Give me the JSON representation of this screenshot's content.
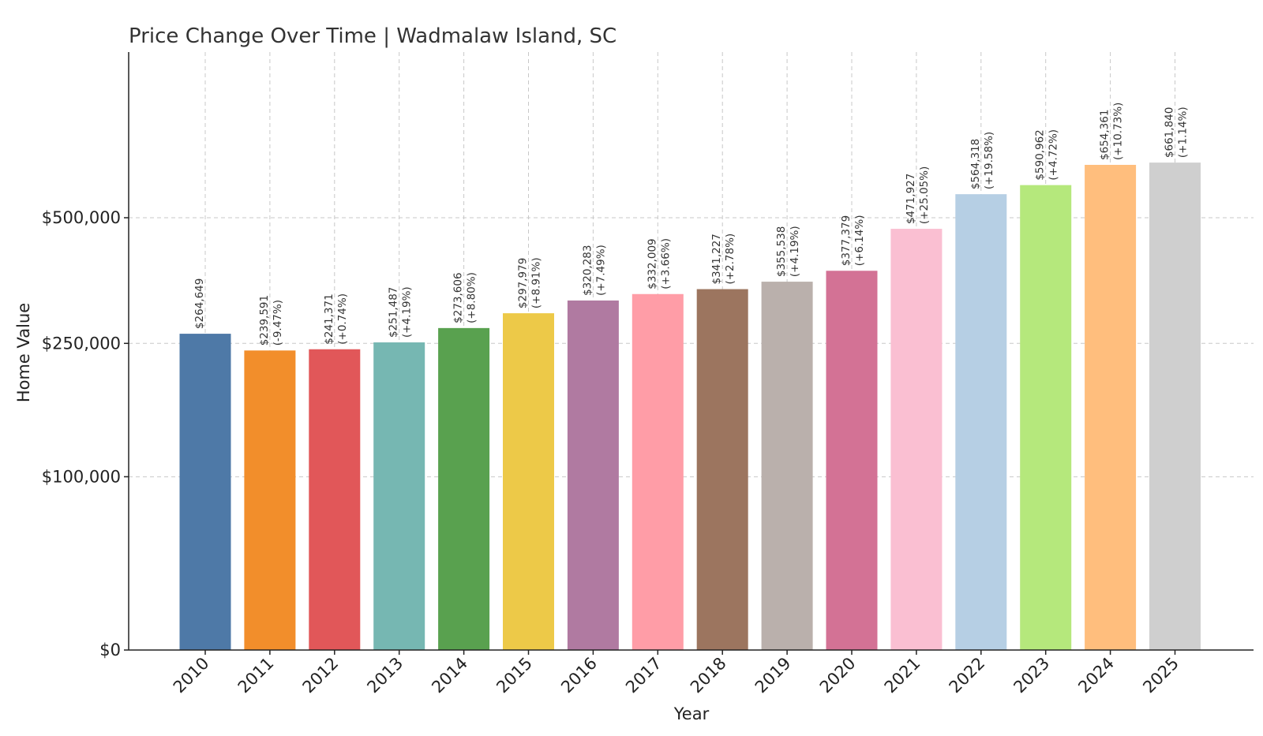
{
  "chart_data": {
    "type": "bar",
    "title": "Price Change Over Time | Wadmalaw Island, SC",
    "xlabel": "Year",
    "ylabel": "Home Value",
    "y_scale": "symlog",
    "ylim": [
      0,
      720000
    ],
    "yticks": [
      0,
      100000,
      250000,
      500000
    ],
    "ytick_labels": [
      "$0",
      "$100,000",
      "$250,000",
      "$500,000"
    ],
    "grid": true,
    "categories": [
      "2010",
      "2011",
      "2012",
      "2013",
      "2014",
      "2015",
      "2016",
      "2017",
      "2018",
      "2019",
      "2020",
      "2021",
      "2022",
      "2023",
      "2024",
      "2025"
    ],
    "values": [
      264649,
      239591,
      241371,
      251487,
      273606,
      297979,
      320283,
      332009,
      341227,
      355538,
      377379,
      471927,
      564318,
      590962,
      654361,
      661840
    ],
    "value_labels": [
      "$264,649",
      "$239,591",
      "$241,371",
      "$251,487",
      "$273,606",
      "$297,979",
      "$320,283",
      "$332,009",
      "$341,227",
      "$355,538",
      "$377,379",
      "$471,927",
      "$564,318",
      "$590,962",
      "$654,361",
      "$661,840"
    ],
    "change_labels": [
      "",
      "(-9.47%)",
      "(+0.74%)",
      "(+4.19%)",
      "(+8.80%)",
      "(+8.91%)",
      "(+7.49%)",
      "(+3.66%)",
      "(+2.78%)",
      "(+4.19%)",
      "(+6.14%)",
      "(+25.05%)",
      "(+19.58%)",
      "(+4.72%)",
      "(+10.73%)",
      "(+1.14%)"
    ],
    "colors": [
      "#4e79a7",
      "#f28e2b",
      "#e15759",
      "#76b7b2",
      "#59a14f",
      "#edc948",
      "#b07aa1",
      "#ff9da7",
      "#9c755f",
      "#bab0ac",
      "#d37295",
      "#fabfd2",
      "#b6cfe4",
      "#b5e87c",
      "#ffbe7d",
      "#cfcfcf"
    ]
  }
}
